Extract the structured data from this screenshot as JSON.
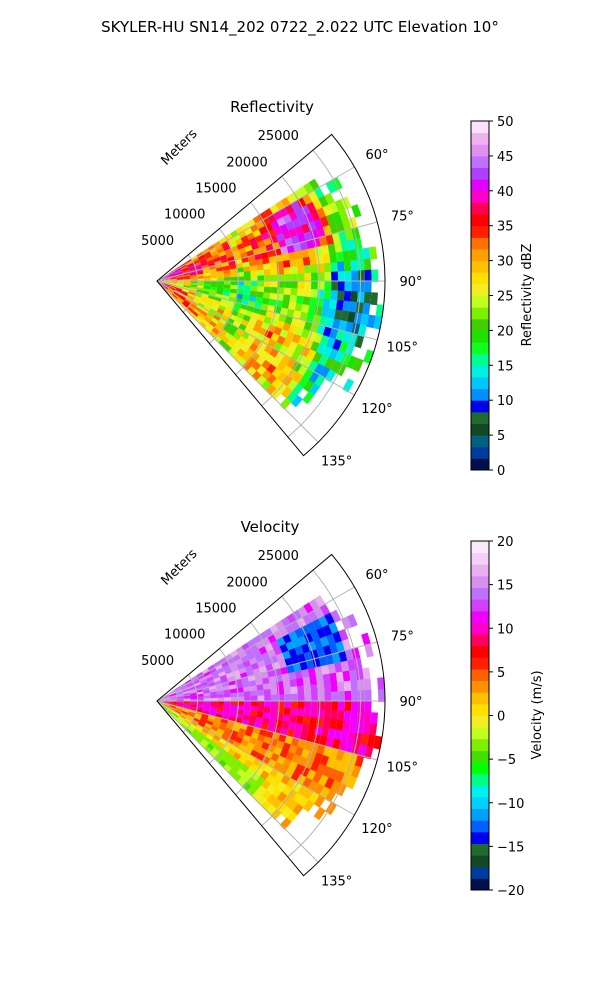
{
  "figure_title": "SKYLER-HU  SN14_202  0722_2.022 UTC Elevation 10°",
  "colors": {
    "grid": "#b4b4b4",
    "reflectivity_scale": [
      "#00104e",
      "#003ca0",
      "#006080",
      "#104a20",
      "#206a30",
      "#0000f0",
      "#0090ff",
      "#00c8ff",
      "#00f0e0",
      "#00ff90",
      "#10ff20",
      "#20e000",
      "#40d000",
      "#80f000",
      "#c0ff20",
      "#f0f020",
      "#ffe000",
      "#ffc000",
      "#ffa000",
      "#ff7000",
      "#ff2000",
      "#ff0000",
      "#ff0050",
      "#ff00c8",
      "#e000ff",
      "#b040ff",
      "#c070ff",
      "#e090f0",
      "#f0b0f0",
      "#fce0fc"
    ],
    "velocity_scale": [
      "#00104e",
      "#003ca0",
      "#104a20",
      "#206a30",
      "#0000f0",
      "#0060ff",
      "#00a0ff",
      "#00d0ff",
      "#00f0f0",
      "#00ff80",
      "#00ff00",
      "#40e000",
      "#80f000",
      "#c0ff20",
      "#f0f020",
      "#ffe000",
      "#ffc000",
      "#ff9000",
      "#ff6000",
      "#ff2000",
      "#ff0000",
      "#ff0060",
      "#ff00c8",
      "#f000ff",
      "#d040ff",
      "#c070ff",
      "#d890f0",
      "#e8b0f0",
      "#f4d0f8",
      "#fce8fc"
    ]
  },
  "chart_data": [
    {
      "type": "heatmap",
      "subtype": "polar-ppi-sector",
      "title": "Reflectivity",
      "radial_label": "Meters",
      "r_ticks": [
        5000,
        10000,
        15000,
        20000,
        25000
      ],
      "r_tick_labels": [
        "5000",
        "10000",
        "15000",
        "20000",
        "25000"
      ],
      "rlim": [
        0,
        28000
      ],
      "azimuth_range": [
        50,
        140
      ],
      "theta_ticks": [
        60,
        75,
        90,
        105,
        120,
        135
      ],
      "theta_tick_labels": [
        "60°",
        "75°",
        "90°",
        "105°",
        "120°",
        "135°"
      ],
      "grid": true,
      "colorbar": {
        "label": "Reflectivity dBZ",
        "range": [
          0,
          50
        ],
        "ticks": [
          0,
          5,
          10,
          15,
          20,
          25,
          30,
          35,
          40,
          45,
          50
        ],
        "tick_labels": [
          "0",
          "5",
          "10",
          "15",
          "20",
          "25",
          "30",
          "35",
          "40",
          "45",
          "50"
        ]
      },
      "data_extent_az": [
        57,
        135
      ],
      "typical_value_range": [
        18,
        38
      ]
    },
    {
      "type": "heatmap",
      "subtype": "polar-ppi-sector",
      "title": "Velocity",
      "radial_label": "Meters",
      "r_ticks": [
        5000,
        10000,
        15000,
        20000,
        25000
      ],
      "r_tick_labels": [
        "5000",
        "10000",
        "15000",
        "20000",
        "25000"
      ],
      "rlim": [
        0,
        28000
      ],
      "azimuth_range": [
        50,
        140
      ],
      "theta_ticks": [
        60,
        75,
        90,
        105,
        120,
        135
      ],
      "theta_tick_labels": [
        "60°",
        "75°",
        "90°",
        "105°",
        "120°",
        "135°"
      ],
      "grid": true,
      "colorbar": {
        "label": "Velocity (m/s)",
        "range": [
          -20,
          20
        ],
        "ticks": [
          -20,
          -15,
          -10,
          -5,
          0,
          5,
          10,
          15,
          20
        ],
        "tick_labels": [
          "−20",
          "−15",
          "−10",
          "−5",
          "0",
          "5",
          "10",
          "15",
          "20"
        ]
      },
      "data_extent_az": [
        57,
        135
      ],
      "typical_value_range": [
        -15,
        18
      ]
    }
  ]
}
